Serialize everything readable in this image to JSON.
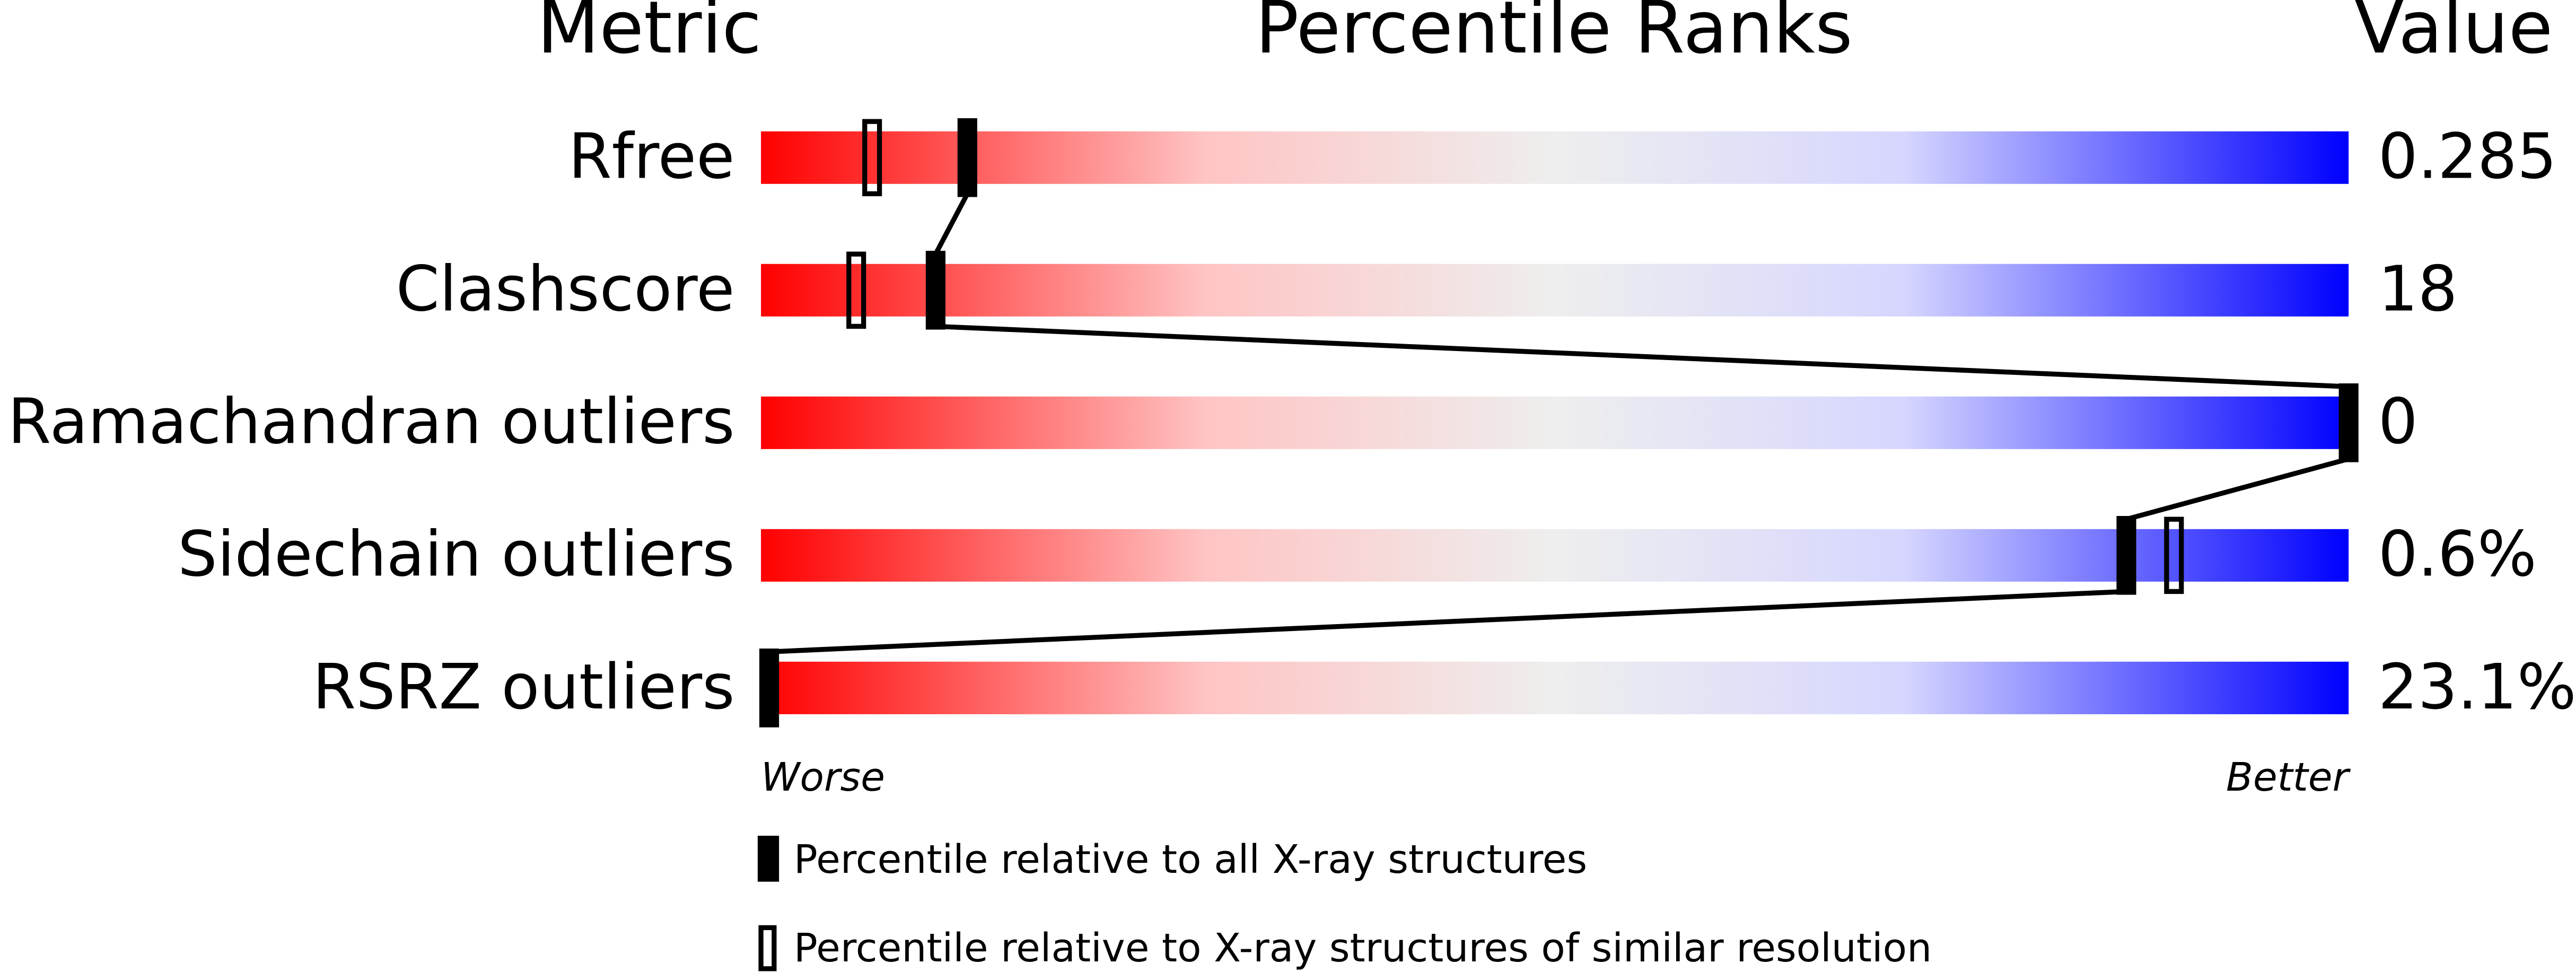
{
  "chart_data": {
    "type": "percentile-slider",
    "headers": [
      "Metric",
      "Percentile Ranks",
      "Value"
    ],
    "metrics": [
      "Rfree",
      "Clashscore",
      "Ramachandran outliers",
      "Sidechain outliers",
      "RSRZ outliers"
    ],
    "metric_values": [
      "0.285",
      "18",
      "0",
      "0.6%",
      "23.1%"
    ],
    "xlim": [
      0,
      100
    ],
    "x_end_labels": [
      "Worse",
      "Better"
    ],
    "series": [
      {
        "name": "Percentile relative to all X-ray structures",
        "color": "#000000",
        "style": "filled",
        "values": [
          13,
          11,
          100,
          86,
          0
        ]
      },
      {
        "name": "Percentile relative to X-ray structures of similar resolution",
        "color": "#000000",
        "style": "open",
        "values": [
          7,
          6,
          null,
          89,
          null
        ]
      }
    ]
  }
}
